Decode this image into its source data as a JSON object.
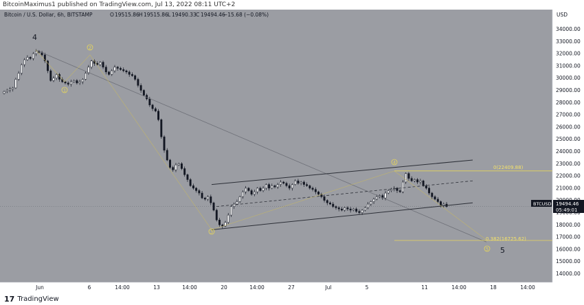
{
  "header": {
    "publisher": "BitcoinMaximus1 published on TradingView.com, Jul 13, 2022 08:11 UTC+2"
  },
  "legend": {
    "symbol_line": "Bitcoin / U.S. Dollar, 6h, BITSTAMP",
    "open_label": "O",
    "open": "19515.86",
    "high_label": "H",
    "high": "19515.86",
    "low_label": "L",
    "low": "19490.33",
    "close_label": "C",
    "close": "19494.46",
    "change": "−15.68 (−0.08%)"
  },
  "price_axis": {
    "currency": "USD",
    "ticks": [
      "34000.00",
      "33000.00",
      "32000.00",
      "31000.00",
      "30000.00",
      "29000.00",
      "28000.00",
      "27000.00",
      "26000.00",
      "25000.00",
      "24000.00",
      "23000.00",
      "22000.00",
      "21000.00",
      "20000.00",
      "19000.00",
      "18000.00",
      "17000.00",
      "16000.00",
      "15000.00",
      "14000.00"
    ],
    "current_symbol": "BTCUSD",
    "current_price": "19494.46",
    "countdown": "05:49:01"
  },
  "time_axis": {
    "ticks": [
      "Jun",
      "6",
      "14:00",
      "13",
      "14:00",
      "20",
      "14:00",
      "27",
      "Jul",
      "5",
      "11",
      "14:00",
      "18",
      "14:00"
    ]
  },
  "fibonacci": {
    "level_0": "0(22409.88)",
    "level_0382": "0.382(16725.62)"
  },
  "wave_labels": {
    "major_4": "4",
    "major_5": "5",
    "minor": [
      "1",
      "2",
      "3",
      "4",
      "5"
    ]
  },
  "colors": {
    "background": "#9b9da3",
    "candle_up": "#ffffff",
    "candle_down": "#131722",
    "channel": "#2b2e36",
    "fib": "#e8d75a",
    "trendline": "#6e7078"
  },
  "chart_data": {
    "type": "candlestick",
    "symbol": "BTCUSD",
    "exchange": "BITSTAMP",
    "interval": "6h",
    "ylim": [
      13300,
      35600
    ],
    "x_ticks": [
      "Jun",
      "6",
      "14:00",
      "13",
      "14:00",
      "20",
      "14:00",
      "27",
      "Jul",
      "5",
      "11",
      "14:00",
      "18",
      "14:00"
    ],
    "candles_close": [
      28900,
      29000,
      29100,
      29200,
      29900,
      30400,
      31100,
      31500,
      31700,
      31600,
      32000,
      32200,
      32100,
      31900,
      31400,
      30600,
      29800,
      30000,
      30300,
      29900,
      29700,
      29600,
      29500,
      29700,
      29800,
      29600,
      29700,
      29900,
      30400,
      30900,
      31400,
      31200,
      31100,
      31300,
      30900,
      30500,
      30300,
      30600,
      30900,
      30800,
      30700,
      30600,
      30500,
      30300,
      30200,
      29900,
      29400,
      29000,
      28600,
      28300,
      27800,
      27500,
      27300,
      26600,
      25200,
      24100,
      23300,
      22700,
      22500,
      22900,
      23000,
      22600,
      22100,
      21700,
      21200,
      21000,
      20800,
      20600,
      20200,
      20100,
      20300,
      19800,
      19200,
      18400,
      18000,
      17900,
      18200,
      18800,
      19500,
      19700,
      19900,
      20300,
      20700,
      21000,
      20800,
      20500,
      20700,
      21000,
      20800,
      21000,
      21300,
      21000,
      21200,
      21100,
      21300,
      21500,
      21400,
      21200,
      21000,
      21300,
      21600,
      21400,
      21500,
      21300,
      21200,
      21000,
      20900,
      20700,
      20500,
      20300,
      20000,
      19800,
      19700,
      19500,
      19400,
      19300,
      19200,
      19400,
      19300,
      19200,
      19300,
      19100,
      19000,
      19200,
      19400,
      19700,
      19900,
      20100,
      20300,
      20400,
      20200,
      20600,
      20800,
      20900,
      21000,
      20800,
      20700,
      21500,
      22200,
      21800,
      21600,
      21700,
      21500,
      21600,
      21200,
      21000,
      20600,
      20300,
      20100,
      19900,
      19600,
      19700,
      19500
    ],
    "resistance_channel": {
      "start": [
        19,
        21300
      ],
      "end": [
        34,
        23300
      ]
    },
    "support_channel": {
      "start": [
        19,
        17600
      ],
      "end": [
        34,
        19800
      ]
    },
    "mid_channel": {
      "start": [
        19,
        19500
      ],
      "end": [
        34,
        21600
      ]
    },
    "fib_levels": [
      {
        "label": "0",
        "value": 22409.88
      },
      {
        "label": "0.382",
        "value": 16725.62
      }
    ]
  }
}
